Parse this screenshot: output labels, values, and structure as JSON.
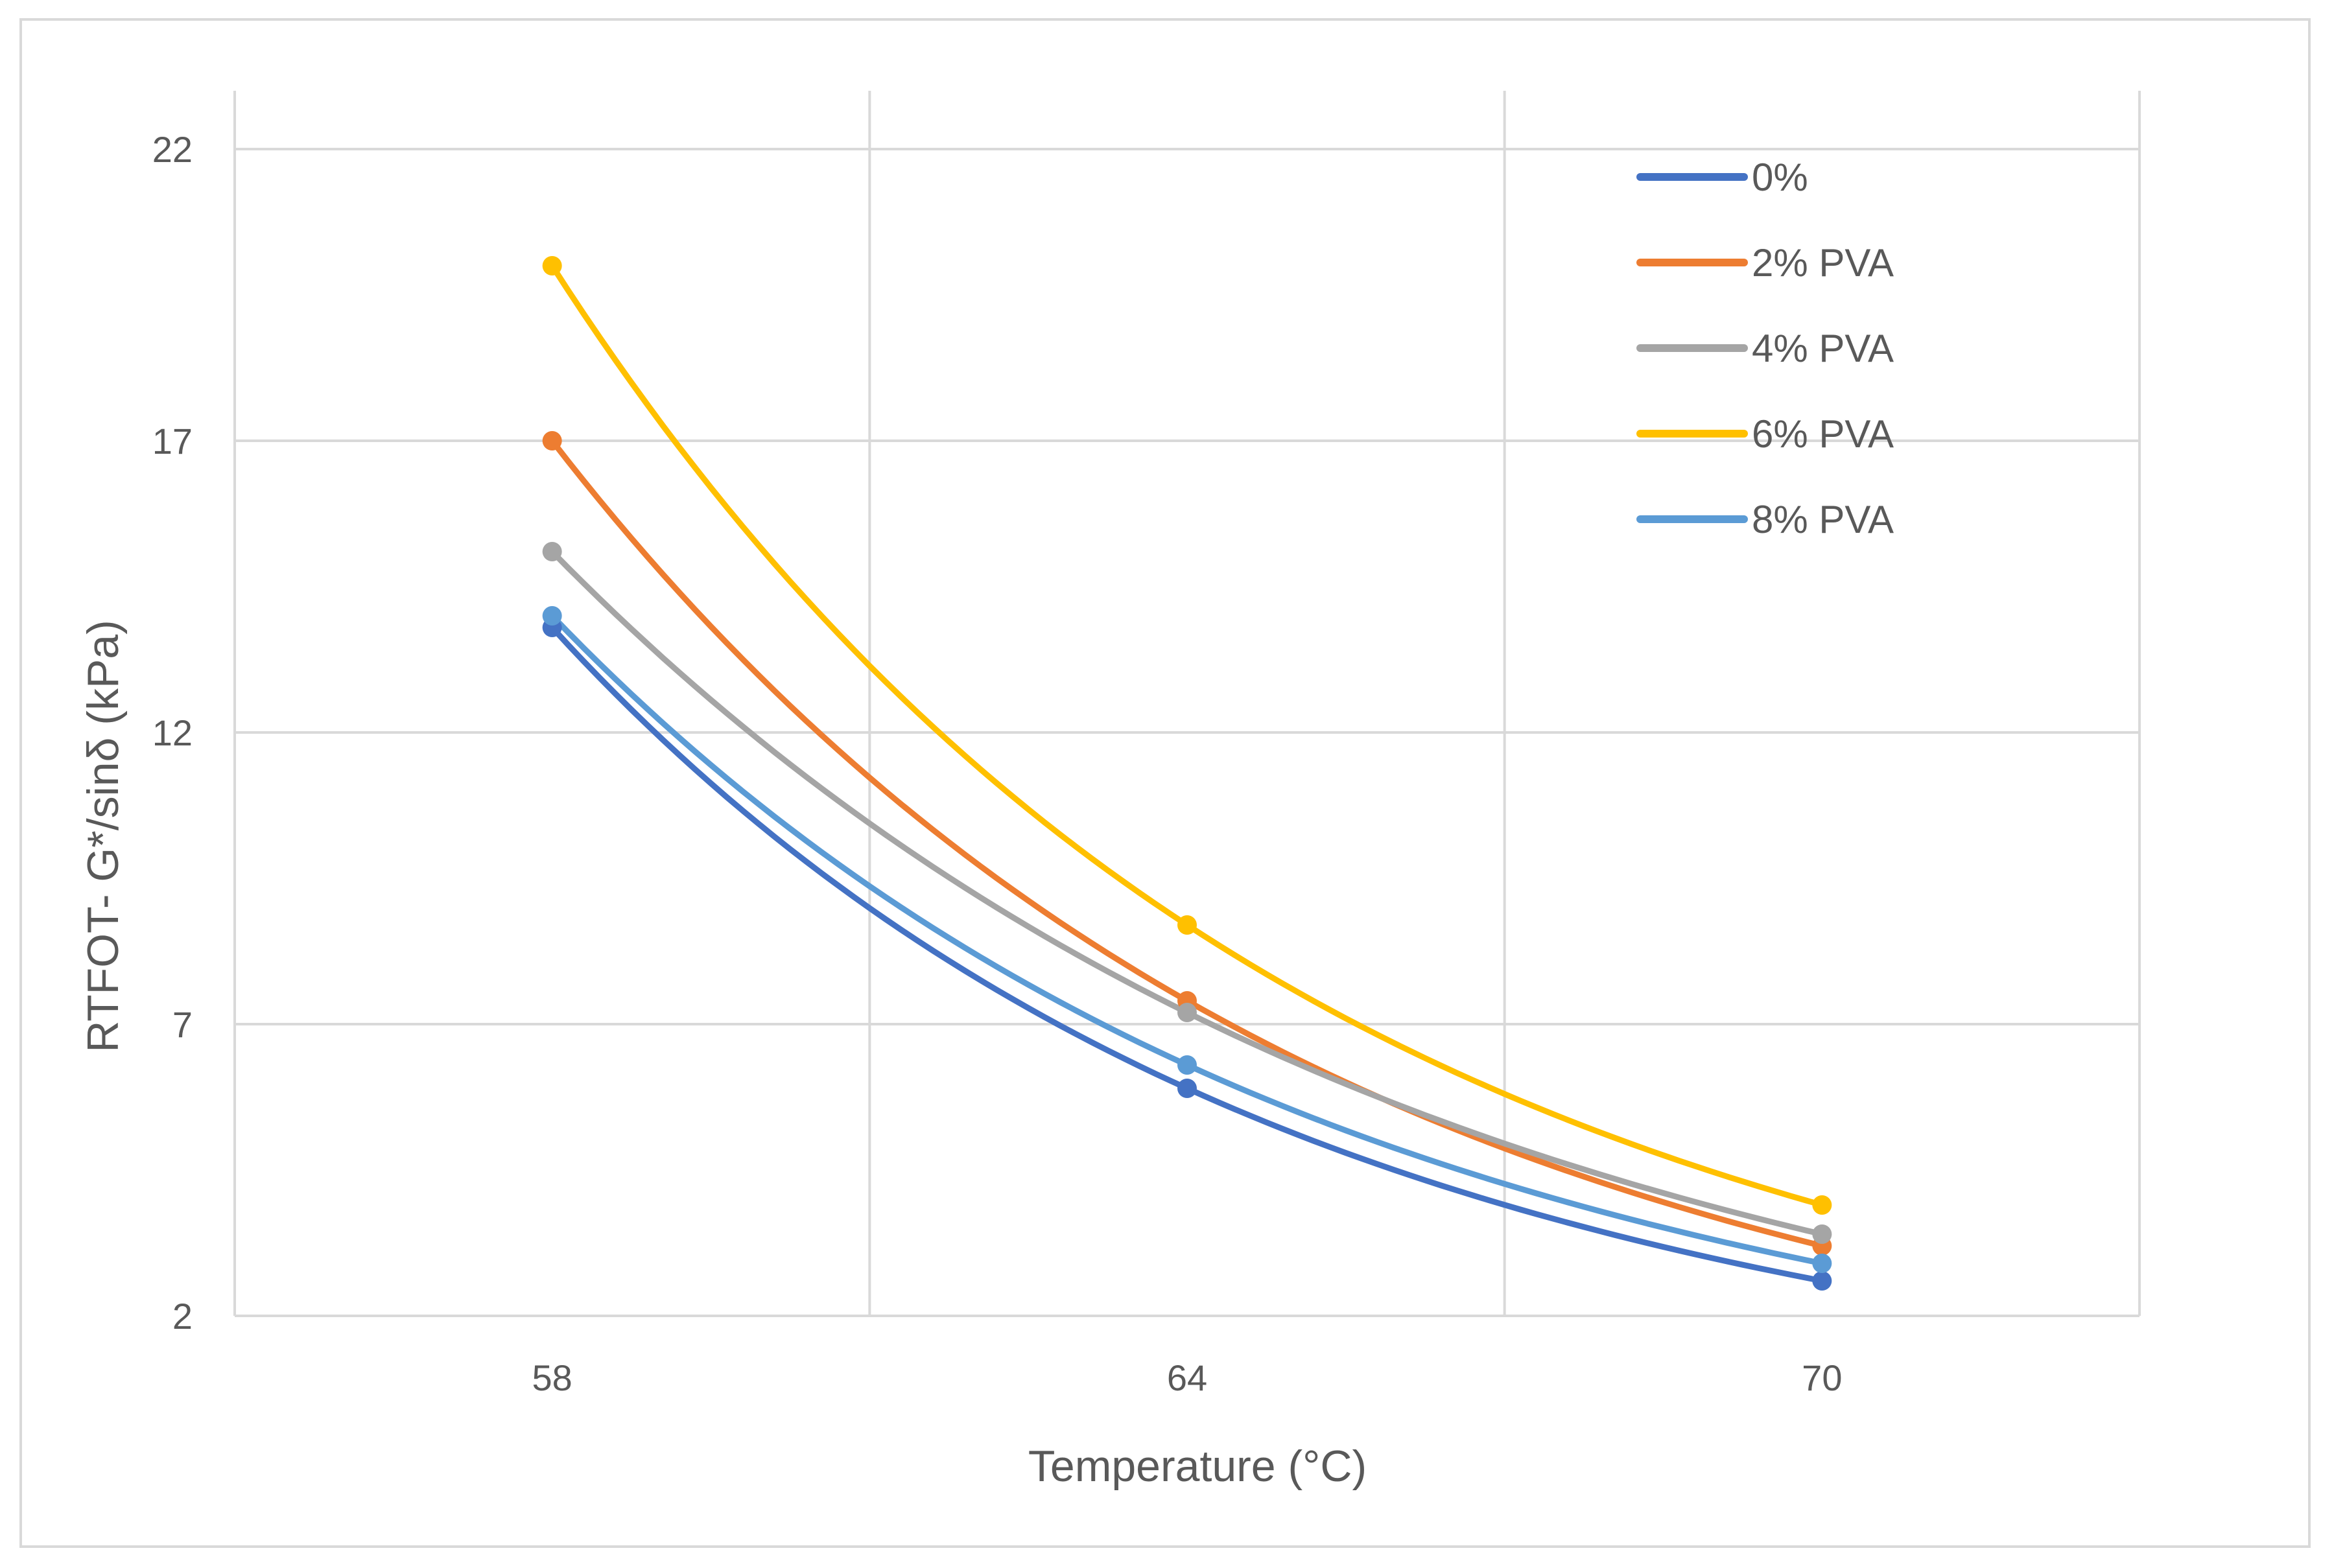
{
  "chart_data": {
    "type": "line",
    "title": "",
    "xlabel": "Temperature (°C)",
    "ylabel": "RTFOT- G*/sinδ (kPa)",
    "categories": [
      "58",
      "64",
      "70"
    ],
    "x": [
      58,
      64,
      70
    ],
    "xlim": [
      55,
      73
    ],
    "ylim": [
      2,
      23
    ],
    "yticks": [
      2,
      7,
      12,
      17,
      22
    ],
    "ytick_labels": [
      "2",
      "7",
      "12",
      "17",
      "22"
    ],
    "xtick_labels": [
      "58",
      "64",
      "70"
    ],
    "grid": true,
    "smoothed": true,
    "legend_position": "top-right",
    "series": [
      {
        "name": "0%",
        "values": [
          13.8,
          5.9,
          2.6
        ],
        "color": "#4472c4"
      },
      {
        "name": "2% PVA",
        "values": [
          17.0,
          7.4,
          3.2
        ],
        "color": "#ed7d31"
      },
      {
        "name": "4% PVA",
        "values": [
          15.1,
          7.2,
          3.4
        ],
        "color": "#a5a5a5"
      },
      {
        "name": "6% PVA",
        "values": [
          20.0,
          8.7,
          3.9
        ],
        "color": "#ffc000"
      },
      {
        "name": "8% PVA",
        "values": [
          14.0,
          6.3,
          2.9
        ],
        "color": "#5b9bd5"
      }
    ]
  }
}
